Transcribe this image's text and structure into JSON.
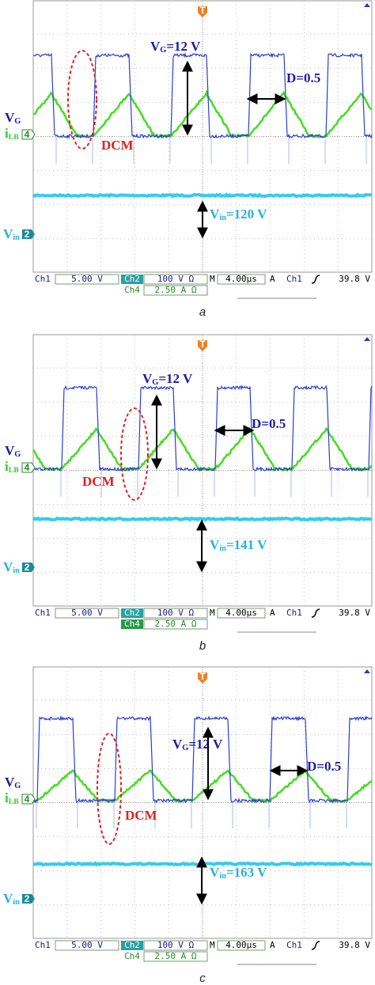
{
  "panels": [
    {
      "caption": "a",
      "trigger": "T",
      "labels": {
        "vg": [
          "V",
          "G"
        ],
        "ilb": [
          "i",
          "LB"
        ],
        "ilb_ch": "4",
        "vin": [
          "V",
          "in"
        ],
        "vin_ch": "2"
      },
      "annotations": {
        "vg": [
          "V",
          "G",
          "=12 V"
        ],
        "duty": "D=0.5",
        "dcm": "DCM",
        "vin": [
          "V",
          "in",
          "=120 V"
        ]
      },
      "status": {
        "ch1": "Ch1",
        "ch1_scale": "5.00 V",
        "ch2": "Ch2",
        "ch2_scale": "100 V Ω",
        "m": "M",
        "timebase": "4.00µs",
        "a": "A",
        "trig_ch": "Ch1",
        "trig_level": "39.8 V",
        "ch4": "Ch4",
        "ch4_scale": "2.50 A Ω"
      }
    },
    {
      "caption": "b",
      "trigger": "T",
      "labels": {
        "vg": [
          "V",
          "G"
        ],
        "ilb": [
          "i",
          "LB"
        ],
        "ilb_ch": "4",
        "vin": [
          "V",
          "in"
        ],
        "vin_ch": "2"
      },
      "annotations": {
        "vg": [
          "V",
          "G",
          "=12 V"
        ],
        "duty": "D=0.5",
        "dcm": "DCM",
        "vin": [
          "V",
          "in",
          "=141 V"
        ]
      },
      "status": {
        "ch1": "Ch1",
        "ch1_scale": "5.00 V",
        "ch2": "Ch2",
        "ch2_scale": "100 V Ω",
        "m": "M",
        "timebase": "4.00µs",
        "a": "A",
        "trig_ch": "Ch1",
        "trig_level": "39.8 V",
        "ch4": "Ch4",
        "ch4_scale": "2.50 A Ω"
      }
    },
    {
      "caption": "c",
      "trigger": "T",
      "labels": {
        "vg": [
          "V",
          "G"
        ],
        "ilb": [
          "i",
          "LB"
        ],
        "ilb_ch": "4",
        "vin": [
          "V",
          "in"
        ],
        "vin_ch": "2"
      },
      "annotations": {
        "vg": [
          "V",
          "G",
          "=12 V"
        ],
        "duty": "D=0.5",
        "dcm": "DCM",
        "vin": [
          "V",
          "in",
          "=163 V"
        ]
      },
      "status": {
        "ch1": "Ch1",
        "ch1_scale": "5.00 V",
        "ch2": "Ch2",
        "ch2_scale": "100 V Ω",
        "m": "M",
        "timebase": "4.00µs",
        "a": "A",
        "trig_ch": "Ch1",
        "trig_level": "39.8 V",
        "ch4": "Ch4",
        "ch4_scale": "2.50 A Ω"
      }
    }
  ]
}
